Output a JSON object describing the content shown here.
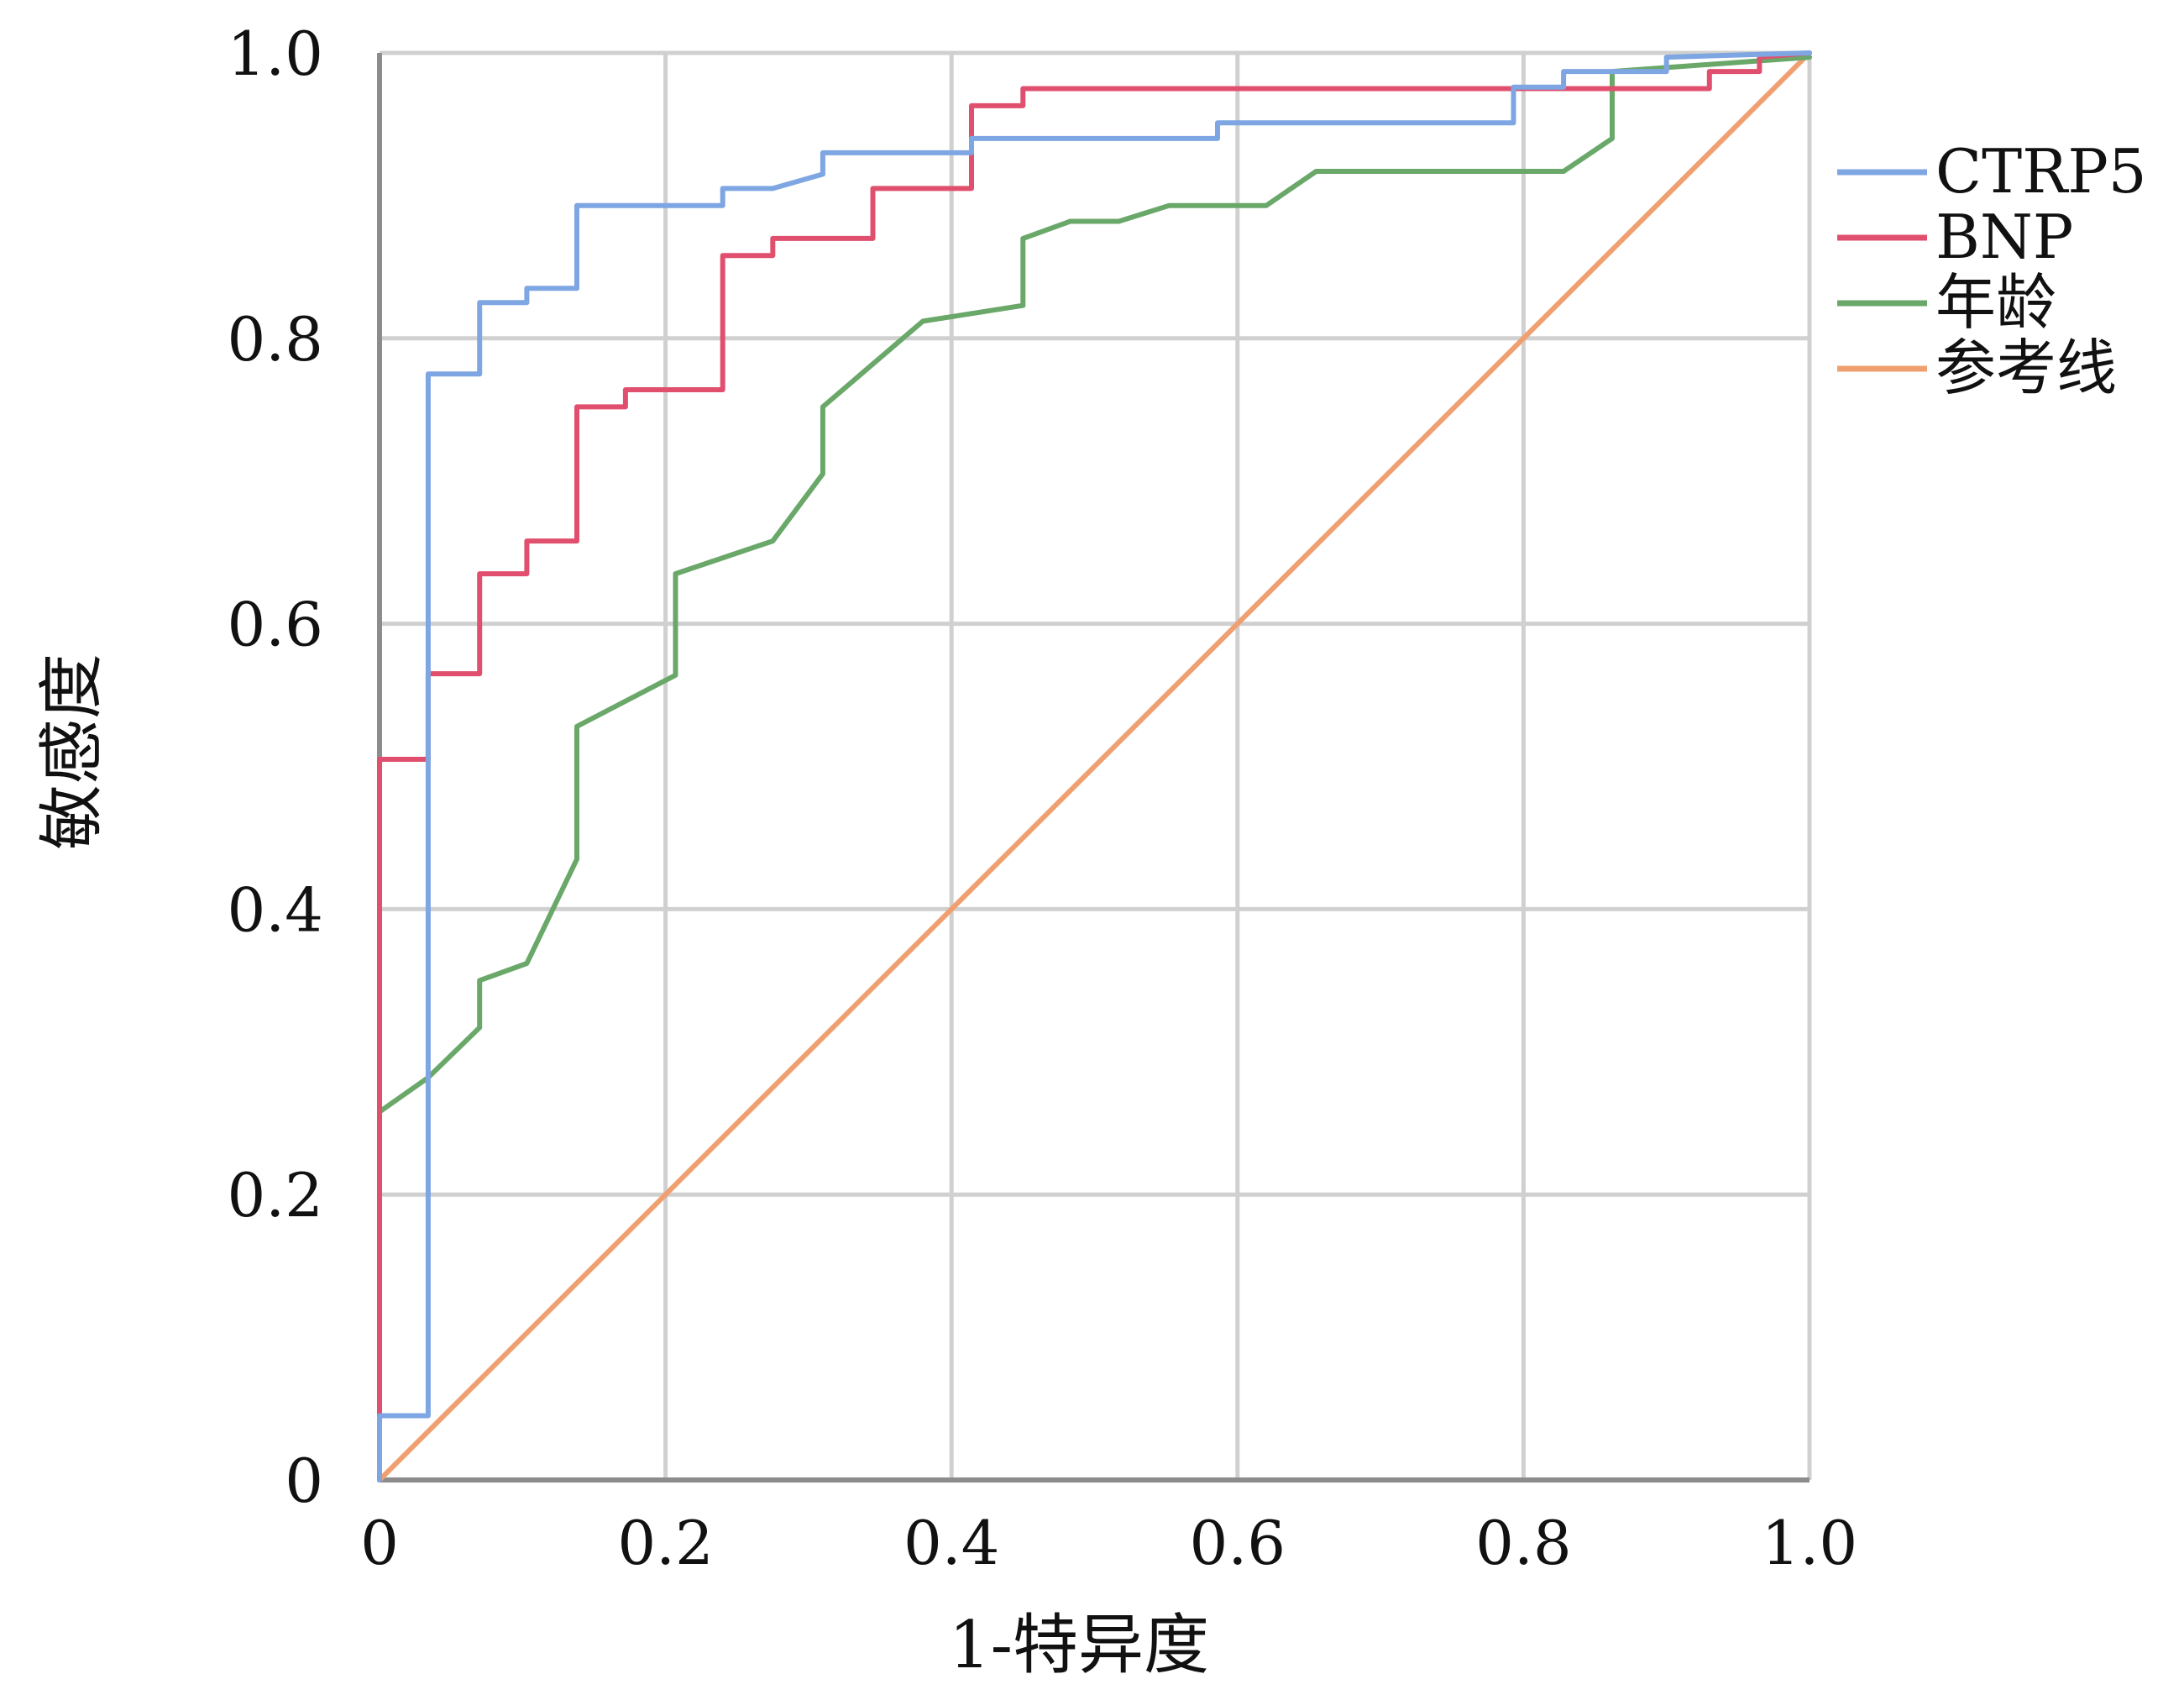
{
  "chart_data": {
    "type": "line",
    "title": "",
    "xlabel": "1-特异度",
    "ylabel": "敏感度",
    "xlim": [
      0,
      1
    ],
    "ylim": [
      0,
      1
    ],
    "grid": true,
    "legend_position": "right",
    "x_ticks": [
      {
        "value": 0,
        "label": "0"
      },
      {
        "value": 0.2,
        "label": "0.2"
      },
      {
        "value": 0.4,
        "label": "0.4"
      },
      {
        "value": 0.6,
        "label": "0.6"
      },
      {
        "value": 0.8,
        "label": "0.8"
      },
      {
        "value": 1.0,
        "label": "1.0"
      }
    ],
    "y_ticks": [
      {
        "value": 0,
        "label": "0"
      },
      {
        "value": 0.2,
        "label": "0.2"
      },
      {
        "value": 0.4,
        "label": "0.4"
      },
      {
        "value": 0.6,
        "label": "0.6"
      },
      {
        "value": 0.8,
        "label": "0.8"
      },
      {
        "value": 1.0,
        "label": "1.0"
      }
    ],
    "series": [
      {
        "name": "CTRP5",
        "color": "#7ea6e3",
        "points": [
          [
            0,
            0
          ],
          [
            0,
            0.045
          ],
          [
            0.034,
            0.045
          ],
          [
            0.034,
            0.775
          ],
          [
            0.07,
            0.775
          ],
          [
            0.07,
            0.825
          ],
          [
            0.103,
            0.825
          ],
          [
            0.103,
            0.835
          ],
          [
            0.138,
            0.835
          ],
          [
            0.138,
            0.893
          ],
          [
            0.24,
            0.893
          ],
          [
            0.24,
            0.905
          ],
          [
            0.275,
            0.905
          ],
          [
            0.31,
            0.915
          ],
          [
            0.31,
            0.93
          ],
          [
            0.414,
            0.93
          ],
          [
            0.414,
            0.94
          ],
          [
            0.586,
            0.94
          ],
          [
            0.586,
            0.951
          ],
          [
            0.793,
            0.951
          ],
          [
            0.793,
            0.976
          ],
          [
            0.828,
            0.976
          ],
          [
            0.828,
            0.987
          ],
          [
            0.9,
            0.987
          ],
          [
            0.9,
            0.997
          ],
          [
            1.0,
            1.0
          ]
        ]
      },
      {
        "name": "BNP",
        "color": "#e0506e",
        "points": [
          [
            0,
            0
          ],
          [
            0,
            0.505
          ],
          [
            0.034,
            0.505
          ],
          [
            0.034,
            0.565
          ],
          [
            0.07,
            0.565
          ],
          [
            0.07,
            0.635
          ],
          [
            0.103,
            0.635
          ],
          [
            0.103,
            0.658
          ],
          [
            0.138,
            0.658
          ],
          [
            0.138,
            0.752
          ],
          [
            0.172,
            0.752
          ],
          [
            0.172,
            0.764
          ],
          [
            0.24,
            0.764
          ],
          [
            0.24,
            0.858
          ],
          [
            0.275,
            0.858
          ],
          [
            0.275,
            0.87
          ],
          [
            0.345,
            0.87
          ],
          [
            0.345,
            0.905
          ],
          [
            0.414,
            0.905
          ],
          [
            0.414,
            0.963
          ],
          [
            0.45,
            0.963
          ],
          [
            0.45,
            0.975
          ],
          [
            0.93,
            0.975
          ],
          [
            0.93,
            0.987
          ],
          [
            0.965,
            0.987
          ],
          [
            0.965,
            0.997
          ],
          [
            1.0,
            1.0
          ]
        ]
      },
      {
        "name": "年龄",
        "color": "#6aa86a",
        "points": [
          [
            0,
            0
          ],
          [
            0,
            0.258
          ],
          [
            0.034,
            0.282
          ],
          [
            0.07,
            0.317
          ],
          [
            0.07,
            0.35
          ],
          [
            0.103,
            0.362
          ],
          [
            0.138,
            0.435
          ],
          [
            0.138,
            0.528
          ],
          [
            0.207,
            0.564
          ],
          [
            0.207,
            0.635
          ],
          [
            0.275,
            0.658
          ],
          [
            0.31,
            0.705
          ],
          [
            0.31,
            0.752
          ],
          [
            0.38,
            0.812
          ],
          [
            0.45,
            0.823
          ],
          [
            0.45,
            0.87
          ],
          [
            0.483,
            0.882
          ],
          [
            0.517,
            0.882
          ],
          [
            0.552,
            0.893
          ],
          [
            0.62,
            0.893
          ],
          [
            0.655,
            0.917
          ],
          [
            0.828,
            0.917
          ],
          [
            0.862,
            0.94
          ],
          [
            0.862,
            0.987
          ],
          [
            1.0,
            0.997
          ]
        ]
      },
      {
        "name": "参考线",
        "color": "#f0a070",
        "points": [
          [
            0,
            0
          ],
          [
            1,
            1
          ]
        ]
      }
    ]
  }
}
